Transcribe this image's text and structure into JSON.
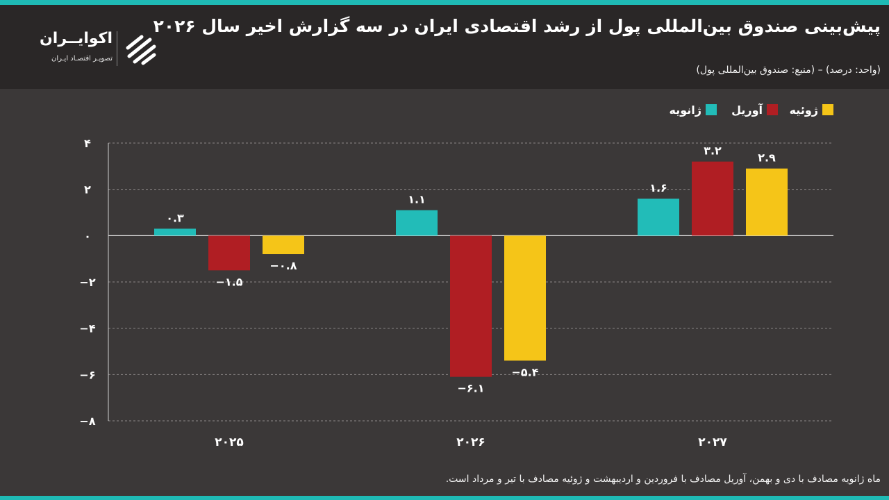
{
  "header": {
    "title": "پیش‌بینی صندوق بین‌المللی پول از رشد اقتصادی ایران در سه گزارش اخیر سال ۲۰۲۶",
    "unit_note": "(واحد: درصد) – (منبع: صندوق بین‌المللی پول)"
  },
  "logo": {
    "name": "اکوایــران",
    "tagline": "تصویـر اقتصـاد ایـران",
    "icon": "ecoiran-logo-icon"
  },
  "footnote": "ماه ژانویه مصادف با دی و بهمن، آوریل مصادف با فروردین و اردیبهشت و ژوئیه مصادف با تیر و مرداد است.",
  "colors": {
    "background": "#3b3838",
    "header_background": "#2a2727",
    "accent": "#1fbab5",
    "january": "#22bcb8",
    "april": "#b01e23",
    "july": "#f5c518"
  },
  "chart_data": {
    "type": "bar",
    "categories": [
      "۲۰۲۵",
      "۲۰۲۶",
      "۲۰۲۷"
    ],
    "series": [
      {
        "name": "ژانویه",
        "values": [
          0.3,
          1.1,
          1.6
        ],
        "labels": [
          "۰.۳",
          "۱.۱",
          "۱.۶"
        ],
        "color": "#22bcb8"
      },
      {
        "name": "آوریل",
        "values": [
          -1.5,
          -6.1,
          3.2
        ],
        "labels": [
          "−۱.۵",
          "−۶.۱",
          "۳.۲"
        ],
        "color": "#b01e23"
      },
      {
        "name": "ژوئیه",
        "values": [
          -0.8,
          -5.4,
          2.9
        ],
        "labels": [
          "−۰.۸",
          "−۵.۴",
          "۲.۹"
        ],
        "color": "#f5c518"
      }
    ],
    "yticks": [
      4,
      2,
      0,
      -2,
      -4,
      -6,
      -8
    ],
    "ytick_labels": [
      "۴",
      "۲",
      "۰",
      "−۲",
      "−۴",
      "−۶",
      "−۸"
    ],
    "ylim": [
      -8,
      4
    ],
    "grid": true,
    "legend_position": "top-right",
    "title": "",
    "xlabel": "",
    "ylabel": ""
  }
}
